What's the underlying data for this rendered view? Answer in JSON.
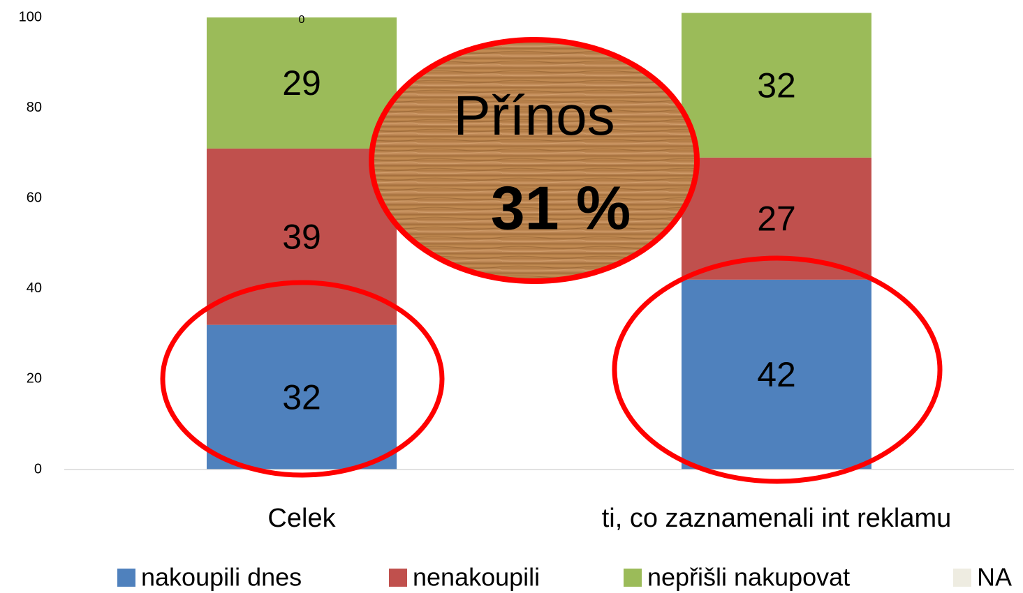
{
  "chart_data": {
    "type": "stacked_bar",
    "categories": [
      "Celek",
      "ti, co zaznamenali int reklamu"
    ],
    "series": [
      {
        "name": "nakoupili dnes",
        "color": "#4f81bd",
        "values": [
          32,
          42
        ]
      },
      {
        "name": "nenakoupili",
        "color": "#c0504d",
        "values": [
          39,
          27
        ]
      },
      {
        "name": "nepřišli nakupovat",
        "color": "#9bbb59",
        "values": [
          29,
          32
        ]
      },
      {
        "name": "NA",
        "color": "#eeece1",
        "values": [
          0,
          null
        ]
      }
    ],
    "ylim": [
      0,
      100
    ],
    "yticks": [
      0,
      20,
      40,
      60,
      80,
      100
    ],
    "grid": false,
    "legend": "bottom",
    "annotations": [
      {
        "text": "Přínos"
      },
      {
        "text": "31 %"
      }
    ]
  }
}
